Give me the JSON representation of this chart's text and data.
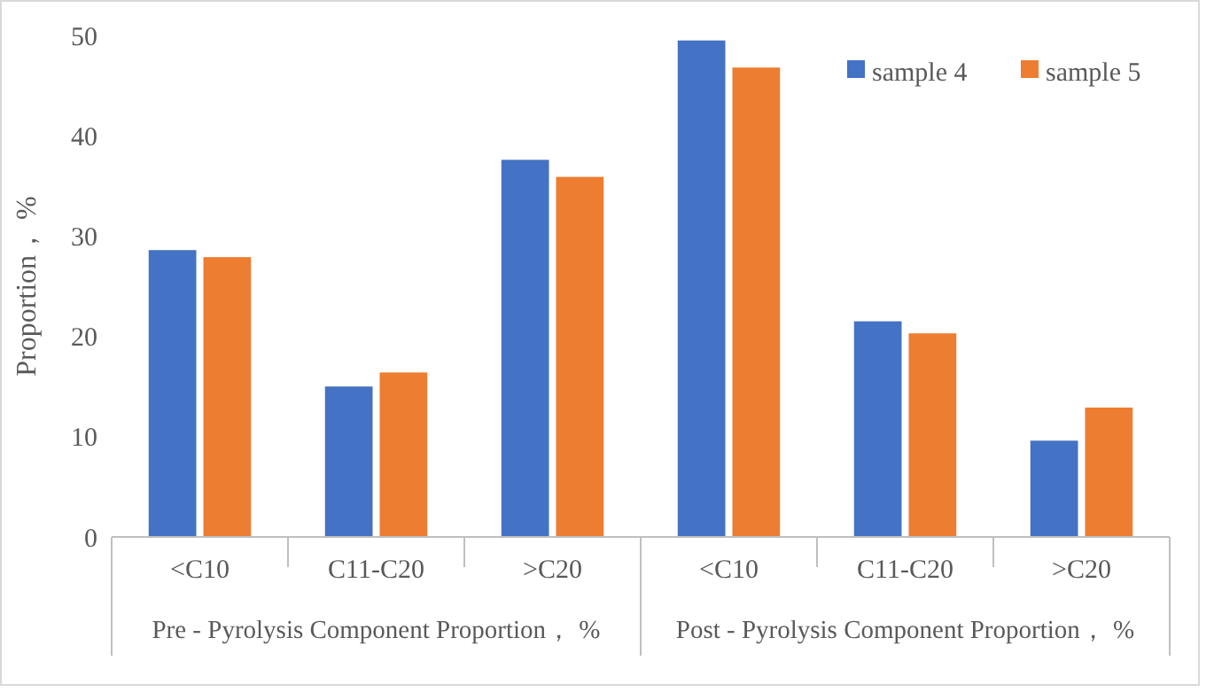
{
  "chart_data": {
    "type": "bar",
    "ylabel": "Proportion， %",
    "categories": [
      "<C10",
      "C11-C20",
      ">C20",
      "<C10",
      "C11-C20",
      ">C20"
    ],
    "series": [
      {
        "name": "sample 4",
        "color": "#4472c4",
        "values": [
          28.6,
          15.0,
          37.6,
          49.5,
          21.5,
          9.6
        ]
      },
      {
        "name": "sample 5",
        "color": "#ed7d31",
        "values": [
          27.9,
          16.4,
          35.9,
          46.8,
          20.3,
          12.9
        ]
      }
    ],
    "ylim": [
      0,
      50
    ],
    "yticks": [
      0,
      10,
      20,
      30,
      40,
      50
    ],
    "grid": false,
    "legend": "top right",
    "annotations": [
      "Pre - Pyrolysis Component Proportion， %",
      "Post - Pyrolysis Component Proportion， %"
    ]
  }
}
